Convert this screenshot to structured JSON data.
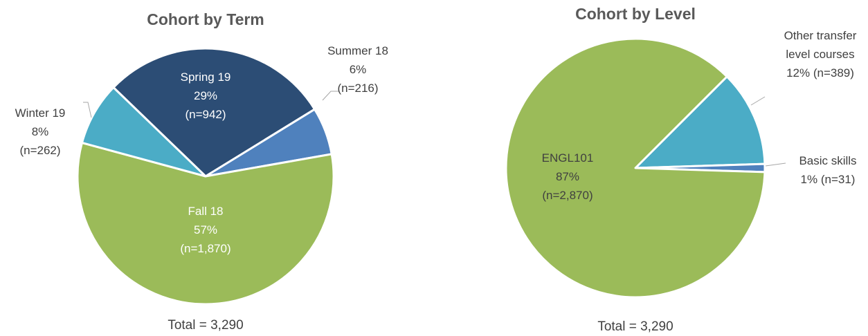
{
  "chart_data": [
    {
      "type": "pie",
      "title": "Cohort by Term",
      "categories": [
        "Spring 19",
        "Summer 18",
        "Fall 18",
        "Winter 19"
      ],
      "values": [
        29,
        6,
        57,
        8
      ],
      "value_labels": [
        "29%",
        "6%",
        "57%",
        "8%"
      ],
      "n_labels": [
        "(n=942)",
        "(n=216)",
        "(n=1,870)",
        "(n=262)"
      ],
      "colors": [
        "#2c4d75",
        "#4f81bd",
        "#9bbb59",
        "#4bacc6"
      ],
      "note": "Total = 3,290"
    },
    {
      "type": "pie",
      "title": "Cohort by Level",
      "categories": [
        "Other transfer level courses",
        "Basic skills",
        "ENGL101"
      ],
      "values": [
        12,
        1,
        87
      ],
      "value_labels": [
        "12%",
        "1%",
        "87%"
      ],
      "n_labels": [
        "(n=389)",
        "(n=31)",
        "(n=2,870)"
      ],
      "colors": [
        "#4bacc6",
        "#4f81bd",
        "#9bbb59"
      ],
      "note": "Total = 3,290"
    }
  ]
}
